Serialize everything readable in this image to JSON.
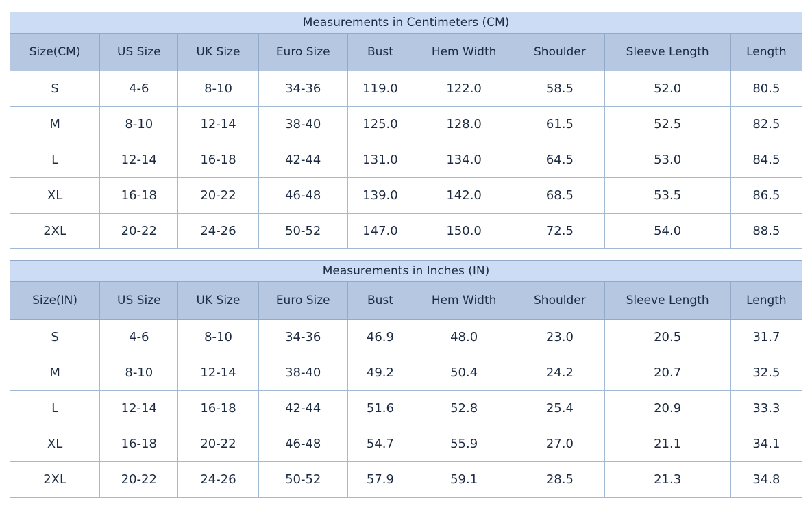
{
  "colors": {
    "title_band_bg": "#cbdcf4",
    "header_row_bg": "#b6c7e1",
    "outer_border": "#93a9c9",
    "inner_border": "#a3b8d2",
    "text": "#1c2b42",
    "row_bg": "#ffffff"
  },
  "chart_data": [
    {
      "type": "table",
      "title": "Measurements in Centimeters (CM)",
      "headers": [
        "Size(CM)",
        "US Size",
        "UK Size",
        "Euro Size",
        "Bust",
        "Hem Width",
        "Shoulder",
        "Sleeve Length",
        "Length"
      ],
      "rows": [
        [
          "S",
          "4-6",
          "8-10",
          "34-36",
          "119.0",
          "122.0",
          "58.5",
          "52.0",
          "80.5"
        ],
        [
          "M",
          "8-10",
          "12-14",
          "38-40",
          "125.0",
          "128.0",
          "61.5",
          "52.5",
          "82.5"
        ],
        [
          "L",
          "12-14",
          "16-18",
          "42-44",
          "131.0",
          "134.0",
          "64.5",
          "53.0",
          "84.5"
        ],
        [
          "XL",
          "16-18",
          "20-22",
          "46-48",
          "139.0",
          "142.0",
          "68.5",
          "53.5",
          "86.5"
        ],
        [
          "2XL",
          "20-22",
          "24-26",
          "50-52",
          "147.0",
          "150.0",
          "72.5",
          "54.0",
          "88.5"
        ]
      ]
    },
    {
      "type": "table",
      "title": "Measurements in Inches (IN)",
      "headers": [
        "Size(IN)",
        "US Size",
        "UK Size",
        "Euro Size",
        "Bust",
        "Hem Width",
        "Shoulder",
        "Sleeve Length",
        "Length"
      ],
      "rows": [
        [
          "S",
          "4-6",
          "8-10",
          "34-36",
          "46.9",
          "48.0",
          "23.0",
          "20.5",
          "31.7"
        ],
        [
          "M",
          "8-10",
          "12-14",
          "38-40",
          "49.2",
          "50.4",
          "24.2",
          "20.7",
          "32.5"
        ],
        [
          "L",
          "12-14",
          "16-18",
          "42-44",
          "51.6",
          "52.8",
          "25.4",
          "20.9",
          "33.3"
        ],
        [
          "XL",
          "16-18",
          "20-22",
          "46-48",
          "54.7",
          "55.9",
          "27.0",
          "21.1",
          "34.1"
        ],
        [
          "2XL",
          "20-22",
          "24-26",
          "50-52",
          "57.9",
          "59.1",
          "28.5",
          "21.3",
          "34.8"
        ]
      ]
    }
  ]
}
